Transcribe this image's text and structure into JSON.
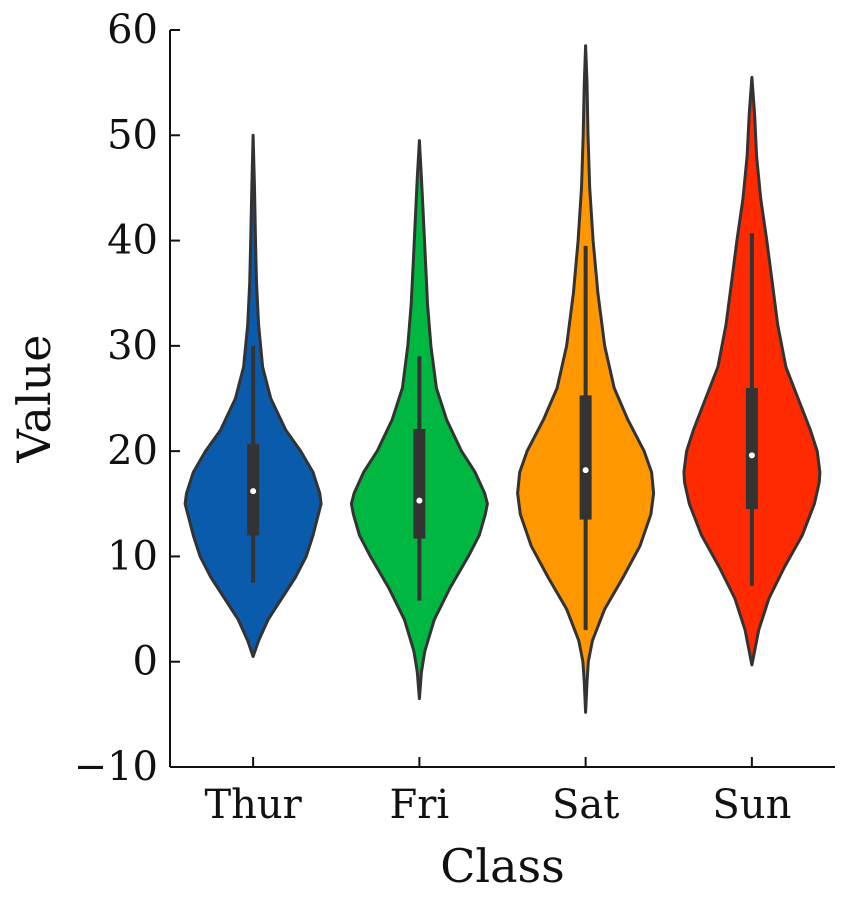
{
  "chart_data": {
    "type": "violin",
    "title": "",
    "xlabel": "Class",
    "ylabel": "Value",
    "ylim": [
      -10,
      60
    ],
    "yticks": [
      -10,
      0,
      10,
      20,
      30,
      40,
      50,
      60
    ],
    "ytick_labels": [
      "−10",
      "0",
      "10",
      "20",
      "30",
      "40",
      "50",
      "60"
    ],
    "grid": false,
    "legend": "none",
    "categories": [
      "Thur",
      "Fri",
      "Sat",
      "Sun"
    ],
    "series": [
      {
        "category": "Thur",
        "color": "#0a5bab",
        "min": 0.5,
        "max": 50,
        "whisker_low": 7.5,
        "q1": 12,
        "median": 16.2,
        "q3": 20.7,
        "whisker_high": 30,
        "density": [
          [
            0.5,
            0.0
          ],
          [
            2,
            0.08
          ],
          [
            4,
            0.22
          ],
          [
            6,
            0.42
          ],
          [
            8,
            0.62
          ],
          [
            10,
            0.78
          ],
          [
            12,
            0.88
          ],
          [
            14,
            0.96
          ],
          [
            15,
            1.0
          ],
          [
            16,
            0.98
          ],
          [
            18,
            0.88
          ],
          [
            20,
            0.7
          ],
          [
            22,
            0.48
          ],
          [
            25,
            0.26
          ],
          [
            28,
            0.14
          ],
          [
            32,
            0.08
          ],
          [
            36,
            0.05
          ],
          [
            40,
            0.035
          ],
          [
            45,
            0.02
          ],
          [
            50,
            0.0
          ]
        ]
      },
      {
        "category": "Fri",
        "color": "#00b841",
        "min": -3.5,
        "max": 49.5,
        "whisker_low": 5.8,
        "q1": 11.7,
        "median": 15.3,
        "q3": 22.1,
        "whisker_high": 29,
        "density": [
          [
            -3.5,
            0.0
          ],
          [
            -1,
            0.03
          ],
          [
            1,
            0.08
          ],
          [
            4,
            0.22
          ],
          [
            7,
            0.45
          ],
          [
            10,
            0.72
          ],
          [
            12,
            0.88
          ],
          [
            14,
            0.97
          ],
          [
            15,
            1.0
          ],
          [
            16,
            0.96
          ],
          [
            18,
            0.82
          ],
          [
            20,
            0.62
          ],
          [
            23,
            0.4
          ],
          [
            26,
            0.25
          ],
          [
            30,
            0.17
          ],
          [
            34,
            0.12
          ],
          [
            38,
            0.09
          ],
          [
            42,
            0.06
          ],
          [
            46,
            0.03
          ],
          [
            49.5,
            0.0
          ]
        ]
      },
      {
        "category": "Sat",
        "color": "#ff9800",
        "min": -4.8,
        "max": 58.5,
        "whisker_low": 3,
        "q1": 13.5,
        "median": 18.2,
        "q3": 25.3,
        "whisker_high": 39.5,
        "density": [
          [
            -4.8,
            0.0
          ],
          [
            -2,
            0.02
          ],
          [
            0,
            0.04
          ],
          [
            2,
            0.1
          ],
          [
            5,
            0.28
          ],
          [
            8,
            0.55
          ],
          [
            11,
            0.8
          ],
          [
            14,
            0.96
          ],
          [
            16,
            1.0
          ],
          [
            18,
            0.97
          ],
          [
            20,
            0.86
          ],
          [
            23,
            0.62
          ],
          [
            26,
            0.42
          ],
          [
            30,
            0.28
          ],
          [
            35,
            0.18
          ],
          [
            40,
            0.11
          ],
          [
            45,
            0.06
          ],
          [
            50,
            0.035
          ],
          [
            55,
            0.02
          ],
          [
            58.5,
            0.0
          ]
        ]
      },
      {
        "category": "Sun",
        "color": "#ff2a00",
        "min": -0.3,
        "max": 55.5,
        "whisker_low": 7.2,
        "q1": 14.5,
        "median": 19.6,
        "q3": 26,
        "whisker_high": 40.7,
        "density": [
          [
            -0.3,
            0.0
          ],
          [
            1,
            0.04
          ],
          [
            3,
            0.1
          ],
          [
            6,
            0.25
          ],
          [
            9,
            0.48
          ],
          [
            12,
            0.74
          ],
          [
            15,
            0.92
          ],
          [
            17,
            0.99
          ],
          [
            18,
            1.0
          ],
          [
            20,
            0.96
          ],
          [
            22,
            0.86
          ],
          [
            25,
            0.68
          ],
          [
            28,
            0.5
          ],
          [
            32,
            0.38
          ],
          [
            36,
            0.3
          ],
          [
            40,
            0.22
          ],
          [
            44,
            0.13
          ],
          [
            48,
            0.07
          ],
          [
            52,
            0.04
          ],
          [
            55.5,
            0.0
          ]
        ]
      }
    ]
  }
}
